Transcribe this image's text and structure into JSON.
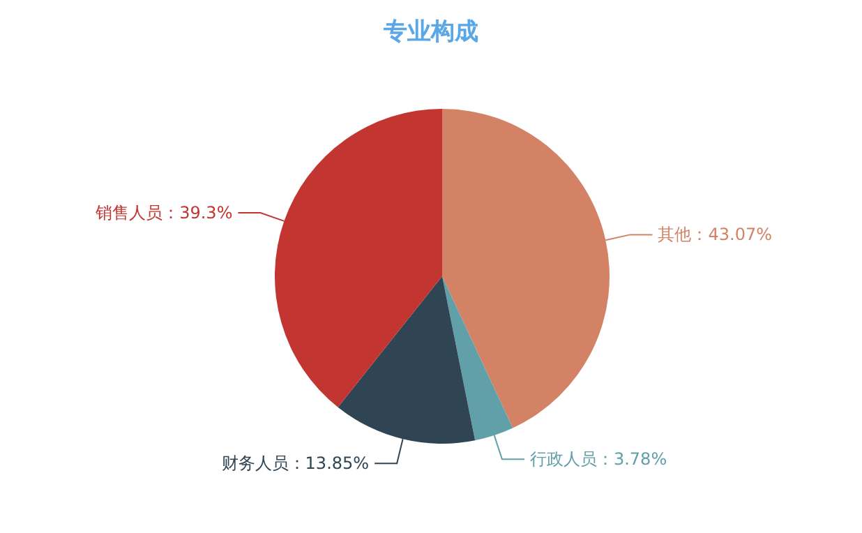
{
  "chart_data": {
    "type": "pie",
    "title": "专业构成",
    "categories": [
      "其他",
      "行政人员",
      "财务人员",
      "销售人员"
    ],
    "values": [
      43.07,
      3.78,
      13.85,
      39.3
    ],
    "value_labels": [
      "43.07%",
      "3.78%",
      "13.85%",
      "39.3%"
    ],
    "colors": [
      "#d48265",
      "#61a0a8",
      "#2f4554",
      "#c23531"
    ]
  }
}
